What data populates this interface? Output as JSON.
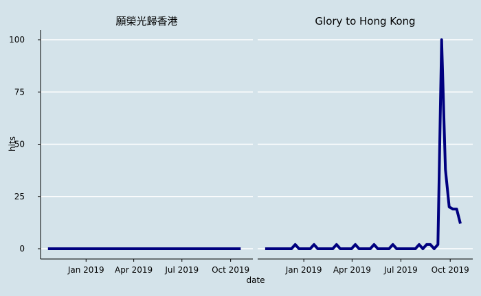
{
  "chart_data": {
    "type": "line",
    "xlabel": "date",
    "ylabel": "hits",
    "ylim": [
      0,
      100
    ],
    "yticks": [
      0,
      25,
      50,
      75,
      100
    ],
    "xlim": [
      "2018-10-07",
      "2019-11-12"
    ],
    "xticks": [
      {
        "date": "2019-01-01",
        "label": "Jan 2019"
      },
      {
        "date": "2019-04-01",
        "label": "Apr 2019"
      },
      {
        "date": "2019-07-01",
        "label": "Jul 2019"
      },
      {
        "date": "2019-10-01",
        "label": "Oct 2019"
      }
    ],
    "grid": true,
    "line_color": "#00007f",
    "panels": [
      {
        "title": "願榮光歸香港",
        "points": [
          [
            "2018-10-21",
            0
          ],
          [
            "2019-10-20",
            0
          ]
        ]
      },
      {
        "title": "Glory to Hong Kong",
        "points": [
          [
            "2018-10-21",
            0
          ],
          [
            "2018-12-09",
            0
          ],
          [
            "2018-12-16",
            2
          ],
          [
            "2018-12-23",
            0
          ],
          [
            "2019-01-13",
            0
          ],
          [
            "2019-01-20",
            2
          ],
          [
            "2019-01-27",
            0
          ],
          [
            "2019-02-24",
            0
          ],
          [
            "2019-03-03",
            2
          ],
          [
            "2019-03-10",
            0
          ],
          [
            "2019-03-31",
            0
          ],
          [
            "2019-04-07",
            2
          ],
          [
            "2019-04-14",
            0
          ],
          [
            "2019-05-05",
            0
          ],
          [
            "2019-05-12",
            2
          ],
          [
            "2019-05-19",
            0
          ],
          [
            "2019-06-09",
            0
          ],
          [
            "2019-06-16",
            2
          ],
          [
            "2019-06-23",
            0
          ],
          [
            "2019-07-28",
            0
          ],
          [
            "2019-08-04",
            2
          ],
          [
            "2019-08-11",
            0
          ],
          [
            "2019-08-18",
            2
          ],
          [
            "2019-08-25",
            2
          ],
          [
            "2019-09-01",
            0
          ],
          [
            "2019-09-08",
            2
          ],
          [
            "2019-09-15",
            100
          ],
          [
            "2019-09-22",
            38
          ],
          [
            "2019-09-29",
            20
          ],
          [
            "2019-10-06",
            19
          ],
          [
            "2019-10-13",
            19
          ],
          [
            "2019-10-20",
            12
          ]
        ]
      }
    ]
  }
}
